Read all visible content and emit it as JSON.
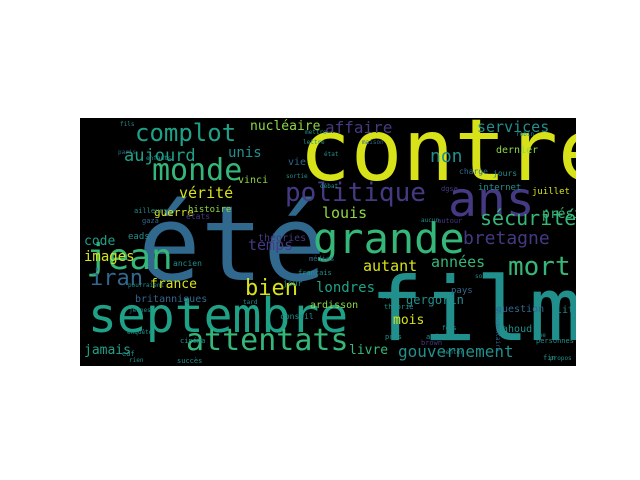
{
  "palette": {
    "background": "#000000",
    "yellow": "#d7e219",
    "lime": "#8fd744",
    "green": "#35b779",
    "teal": "#1fa187",
    "cyan": "#21908d",
    "blue": "#31688e",
    "indigo": "#443a83",
    "purple": "#440154"
  },
  "words": [
    {
      "key": "contre",
      "text": "contre",
      "color": "yellow"
    },
    {
      "key": "film",
      "text": "film",
      "color": "cyan"
    },
    {
      "key": "ete",
      "text": "été",
      "color": "blue"
    },
    {
      "key": "septembre",
      "text": "septembre",
      "color": "teal"
    },
    {
      "key": "ans",
      "text": "ans",
      "color": "indigo"
    },
    {
      "key": "grande",
      "text": "grande",
      "color": "green"
    },
    {
      "key": "jean",
      "text": "jean",
      "color": "green"
    },
    {
      "key": "attentats",
      "text": "attentats",
      "color": "green"
    },
    {
      "key": "monde",
      "text": "monde",
      "color": "green"
    },
    {
      "key": "politique",
      "text": "politique",
      "color": "indigo"
    },
    {
      "key": "complot",
      "text": "complot",
      "color": "teal"
    },
    {
      "key": "mort",
      "text": "mort",
      "color": "green"
    },
    {
      "key": "bretagne",
      "text": "bretagne",
      "color": "indigo"
    },
    {
      "key": "securite",
      "text": "sécurité",
      "color": "green"
    },
    {
      "key": "iran",
      "text": "iran",
      "color": "blue"
    },
    {
      "key": "bien",
      "text": "bien",
      "color": "yellow"
    },
    {
      "key": "gouvernement",
      "text": "gouvernement",
      "color": "cyan"
    },
    {
      "key": "aujourd",
      "text": "aujourd",
      "color": "teal"
    },
    {
      "key": "affaire",
      "text": "affaire",
      "color": "indigo"
    },
    {
      "key": "non",
      "text": "non",
      "color": "cyan"
    },
    {
      "key": "services",
      "text": "services",
      "color": "cyan"
    },
    {
      "key": "nucleaire",
      "text": "nucléaire",
      "color": "lime"
    },
    {
      "key": "verite",
      "text": "vérité",
      "color": "yellow"
    },
    {
      "key": "unis",
      "text": "unis",
      "color": "cyan"
    },
    {
      "key": "temps",
      "text": "temps",
      "color": "indigo"
    },
    {
      "key": "president",
      "text": "président",
      "color": "green"
    },
    {
      "key": "louis",
      "text": "louis",
      "color": "lime"
    },
    {
      "key": "autant",
      "text": "autant",
      "color": "yellow"
    },
    {
      "key": "annees",
      "text": "années",
      "color": "green"
    },
    {
      "key": "londres",
      "text": "londres",
      "color": "teal"
    },
    {
      "key": "images",
      "text": "images",
      "color": "yellow"
    },
    {
      "key": "france",
      "text": "france",
      "color": "yellow"
    },
    {
      "key": "code",
      "text": "code",
      "color": "teal"
    },
    {
      "key": "jamais",
      "text": "jamais",
      "color": "teal"
    },
    {
      "key": "livre",
      "text": "livre",
      "color": "green"
    },
    {
      "key": "mois",
      "text": "mois",
      "color": "yellow"
    },
    {
      "key": "gergorin",
      "text": "gergorin",
      "color": "cyan"
    },
    {
      "key": "guerre",
      "text": "guerre",
      "color": "yellow"
    },
    {
      "key": "histoire",
      "text": "histoire",
      "color": "lime"
    },
    {
      "key": "vinci",
      "text": "vinci",
      "color": "lime"
    },
    {
      "key": "vie",
      "text": "vie",
      "color": "blue"
    },
    {
      "key": "theories",
      "text": "théories",
      "color": "indigo"
    },
    {
      "key": "britanniques",
      "text": "britanniques",
      "color": "blue"
    },
    {
      "key": "ardisson",
      "text": "ardisson",
      "color": "lime"
    },
    {
      "key": "question",
      "text": "question",
      "color": "blue"
    },
    {
      "key": "lahoud",
      "text": "lahoud",
      "color": "cyan"
    },
    {
      "key": "dernier",
      "text": "dernier",
      "color": "lime"
    },
    {
      "key": "internet",
      "text": "internet",
      "color": "cyan"
    },
    {
      "key": "litvinenko",
      "text": "litvinenko",
      "color": "cyan"
    },
    {
      "key": "juillet",
      "text": "juillet",
      "color": "yellow"
    },
    {
      "key": "pays",
      "text": "pays",
      "color": "blue"
    },
    {
      "key": "conseil",
      "text": "conseil",
      "color": "cyan"
    },
    {
      "key": "eads",
      "text": "eads",
      "color": "cyan"
    },
    {
      "key": "ancien",
      "text": "ancien",
      "color": "cyan"
    },
    {
      "key": "jour",
      "text": "jour",
      "color": "cyan"
    },
    {
      "key": "charge",
      "text": "charge",
      "color": "blue"
    },
    {
      "key": "jours",
      "text": "jours",
      "color": "cyan"
    },
    {
      "key": "francais",
      "text": "français",
      "color": "cyan"
    },
    {
      "key": "ailleurs",
      "text": "ailleurs",
      "color": "cyan"
    },
    {
      "key": "medias",
      "text": "médias",
      "color": "blue"
    },
    {
      "key": "etats",
      "text": "états",
      "color": "indigo"
    },
    {
      "key": "gaza",
      "text": "gaza",
      "color": "blue"
    },
    {
      "key": "enfants",
      "text": "enfants",
      "color": "cyan"
    },
    {
      "key": "edf",
      "text": "edf",
      "color": "cyan"
    },
    {
      "key": "succes",
      "text": "succès",
      "color": "cyan"
    },
    {
      "key": "autour",
      "text": "autour",
      "color": "indigo"
    },
    {
      "key": "americain",
      "text": "américain",
      "color": "cyan"
    },
    {
      "key": "personnes",
      "text": "personnes",
      "color": "cyan"
    },
    {
      "key": "brown",
      "text": "brown",
      "color": "indigo"
    },
    {
      "key": "dgse",
      "text": "dgse",
      "color": "indigo"
    },
    {
      "key": "cinema",
      "text": "cinéma",
      "color": "cyan"
    },
    {
      "key": "theorie",
      "text": "théorie",
      "color": "cyan"
    },
    {
      "key": "faut",
      "text": "faut",
      "color": "cyan"
    },
    {
      "key": "pris",
      "text": "pris",
      "color": "cyan"
    },
    {
      "key": "fin",
      "text": "fin",
      "color": "cyan"
    },
    {
      "key": "debat",
      "text": "débat",
      "color": "cyan"
    },
    {
      "key": "sortie",
      "text": "sortie",
      "color": "cyan"
    },
    {
      "key": "mettre",
      "text": "mettre",
      "color": "cyan"
    },
    {
      "key": "lettre",
      "text": "lettre",
      "color": "cyan"
    },
    {
      "key": "etat",
      "text": "état",
      "color": "cyan"
    },
    {
      "key": "aucun",
      "text": "aucun",
      "color": "cyan"
    },
    {
      "key": "pourraient",
      "text": "pourraient",
      "color": "cyan"
    },
    {
      "key": "jeunes",
      "text": "jeunes",
      "color": "cyan"
    },
    {
      "key": "rien",
      "text": "rien",
      "color": "cyan"
    },
    {
      "key": "enquete",
      "text": "enquête",
      "color": "cyan"
    },
    {
      "key": "robin",
      "text": "robin",
      "color": "cyan"
    },
    {
      "key": "the",
      "text": "the",
      "color": "cyan"
    },
    {
      "key": "fois",
      "text": "fois",
      "color": "cyan"
    },
    {
      "key": "center",
      "text": "center",
      "color": "cyan"
    },
    {
      "key": "tard",
      "text": "tard",
      "color": "cyan"
    },
    {
      "key": "fils",
      "text": "fils",
      "color": "cyan"
    },
    {
      "key": "documentaire",
      "text": "documentaire",
      "color": "blue"
    },
    {
      "key": "paris",
      "text": "paris",
      "color": "blue"
    },
    {
      "key": "soir",
      "text": "soir",
      "color": "cyan"
    },
    {
      "key": "propos",
      "text": "propos",
      "color": "cyan"
    },
    {
      "key": "maison",
      "text": "maison",
      "color": "blue"
    }
  ]
}
